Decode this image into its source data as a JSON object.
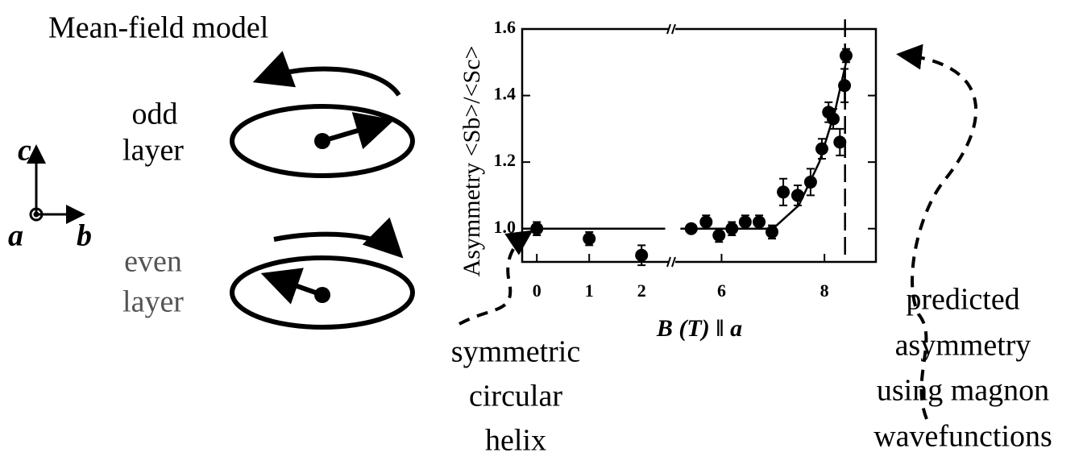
{
  "diagram": {
    "title": "Mean-field model",
    "odd_layer": [
      "odd",
      "layer"
    ],
    "even_layer": [
      "even",
      "layer"
    ],
    "axes": {
      "c": "c",
      "a": "a",
      "b": "b"
    },
    "left_note": [
      "symmetric",
      "circular",
      "helix"
    ],
    "right_note": [
      "predicted",
      "asymmetry",
      "using magnon",
      "wavefunctions"
    ]
  },
  "chart_data": {
    "type": "scatter",
    "x_label": "B (T) ‖ a",
    "y_label": "Asymmetry  <Sb>/<Sc>",
    "segments": [
      {
        "xlim": [
          -0.28,
          2.52
        ],
        "xticks": [
          0,
          1,
          2
        ]
      },
      {
        "xlim": [
          5.1,
          9.0
        ],
        "xticks": [
          6,
          8
        ]
      }
    ],
    "ylim": [
      0.9,
      1.6
    ],
    "yticks": [
      {
        "value": 1,
        "label": "1.0"
      },
      1.2,
      1.4,
      1.6
    ],
    "color": "#000000",
    "x": [
      0,
      1,
      2,
      5.41,
      5.7,
      5.95,
      6.2,
      6.46,
      6.73,
      6.98,
      7.2,
      7.48,
      7.73,
      7.95,
      8.08,
      8.17,
      8.3,
      8.39,
      8.42
    ],
    "values": [
      1.0,
      0.97,
      0.92,
      1.0,
      1.02,
      0.98,
      1.0,
      1.02,
      1.02,
      0.99,
      1.11,
      1.1,
      1.14,
      1.24,
      1.35,
      1.33,
      1.26,
      1.43,
      1.52
    ],
    "errors": [
      0.02,
      0.02,
      0.03,
      0.01,
      0.02,
      0.02,
      0.02,
      0.02,
      0.02,
      0.02,
      0.04,
      0.03,
      0.04,
      0.03,
      0.03,
      0.03,
      0.04,
      0.05,
      0.02
    ],
    "fit": {
      "x": [
        -0.28,
        2.45,
        null,
        5.2,
        7.0,
        7.5,
        7.9,
        8.2,
        8.42
      ],
      "values": [
        1.0,
        1.0,
        null,
        1.0,
        1.0,
        1.07,
        1.2,
        1.35,
        1.5
      ]
    },
    "predicted_line": 8.4
  }
}
